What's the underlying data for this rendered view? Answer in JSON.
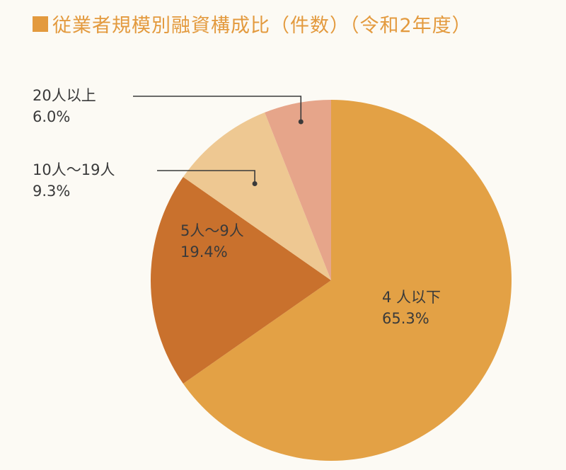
{
  "colors": {
    "title": "#e39a3e",
    "leader": "#3a3a3a"
  },
  "chart_data": {
    "type": "pie",
    "title": "従業者規模別融資構成比（件数）（令和2年度）",
    "start": "12 o'clock",
    "direction": "clockwise",
    "slices": [
      {
        "category": "4 人以下",
        "value": 65.3,
        "value_label": "65.3%",
        "color": "#e3a145"
      },
      {
        "category": "5人～9人",
        "value": 19.4,
        "value_label": "19.4%",
        "color": "#c9712d"
      },
      {
        "category": "10人～19人",
        "value": 9.3,
        "value_label": "9.3%",
        "color": "#eec892"
      },
      {
        "category": "20人以上",
        "value": 6.0,
        "value_label": "6.0%",
        "color": "#e6a58a"
      }
    ]
  }
}
